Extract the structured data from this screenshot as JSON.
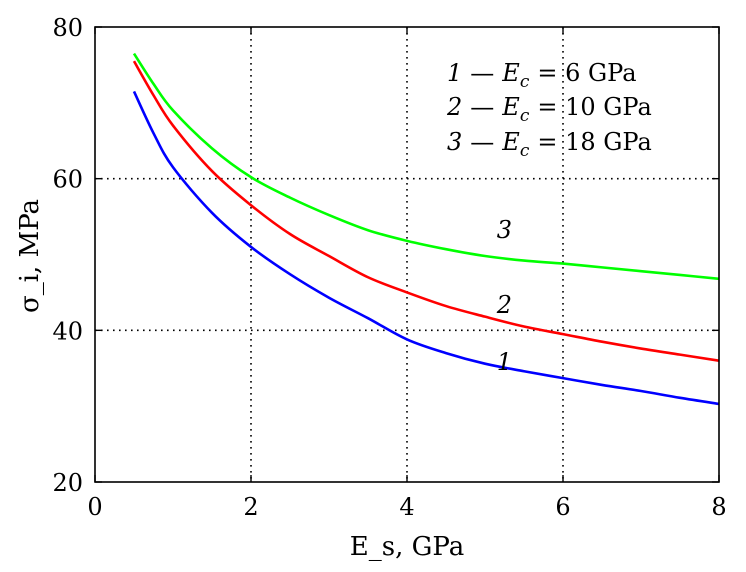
{
  "chart_data": {
    "type": "line",
    "xlabel": "E_s, GPa",
    "ylabel": "σ_i, MPa",
    "xlim": [
      0,
      8
    ],
    "ylim": [
      20,
      80
    ],
    "xticks": [
      0,
      2,
      4,
      6,
      8
    ],
    "yticks": [
      20,
      40,
      60,
      80
    ],
    "grid": "dotted",
    "legend_position": "top-right",
    "legend": [
      {
        "num": "1",
        "dash": "—",
        "sym": "E",
        "sub": "c",
        "eq": "= 6 GPa"
      },
      {
        "num": "2",
        "dash": "—",
        "sym": "E",
        "sub": "c",
        "eq": "= 10 GPa"
      },
      {
        "num": "3",
        "dash": "—",
        "sym": "E",
        "sub": "c",
        "eq": "= 18 GPa"
      }
    ],
    "series": [
      {
        "label": "1",
        "color": "#0000ff",
        "x": [
          0.5,
          0.75,
          1,
          1.5,
          2,
          2.5,
          3,
          3.5,
          4,
          4.5,
          5,
          5.5,
          6,
          6.5,
          7,
          7.5,
          8
        ],
        "y": [
          71.5,
          66,
          61.5,
          55.5,
          51,
          47.4,
          44.3,
          41.6,
          38.8,
          37,
          35.6,
          34.6,
          33.7,
          32.8,
          32,
          31.1,
          30.3
        ]
      },
      {
        "label": "2",
        "color": "#ff0000",
        "x": [
          0.5,
          0.75,
          1,
          1.5,
          2,
          2.5,
          3,
          3.5,
          4,
          4.5,
          5,
          5.5,
          6,
          6.5,
          7,
          7.5,
          8
        ],
        "y": [
          75.5,
          71,
          67,
          61,
          56.5,
          52.7,
          49.8,
          47,
          45,
          43.2,
          41.8,
          40.5,
          39.5,
          38.5,
          37.6,
          36.8,
          36
        ]
      },
      {
        "label": "3",
        "color": "#00ff00",
        "x": [
          0.5,
          0.75,
          1,
          1.5,
          2,
          2.5,
          3,
          3.5,
          4,
          4.5,
          5,
          5.5,
          6,
          6.5,
          7,
          7.5,
          8
        ],
        "y": [
          76.5,
          72.5,
          69,
          64,
          60.2,
          57.5,
          55.2,
          53.2,
          51.8,
          50.7,
          49.8,
          49.2,
          48.8,
          48.3,
          47.8,
          47.3,
          46.8
        ]
      }
    ],
    "curve_labels": [
      {
        "text": "1",
        "x": 5.15,
        "y": 34.8
      },
      {
        "text": "2",
        "x": 5.15,
        "y": 42.3
      },
      {
        "text": "3",
        "x": 5.15,
        "y": 52.2
      }
    ]
  }
}
